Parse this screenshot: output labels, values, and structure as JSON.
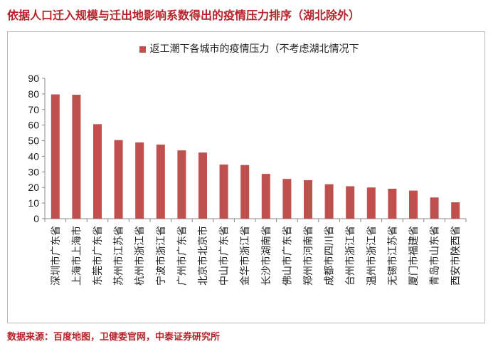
{
  "title": "依据人口迁入规模与迁出地影响系数得出的疫情压力排序（湖北除外）",
  "source": "数据来源：百度地图，卫健委官网，中泰证券研究所",
  "chart_data": {
    "type": "bar",
    "title": "",
    "xlabel": "",
    "ylabel": "",
    "ylim": [
      0,
      90
    ],
    "yticks": [
      0,
      10,
      20,
      30,
      40,
      50,
      60,
      70,
      80,
      90
    ],
    "legend": {
      "position": "top",
      "entries": [
        "返工潮下各城市的疫情压力（不考虑湖北情况下"
      ]
    },
    "grid": false,
    "bar_color": "#c0504d",
    "categories": [
      "深圳市广东省",
      "上海市上海市",
      "东莞市广东省",
      "苏州市江苏省",
      "杭州市浙江省",
      "宁波市浙江省",
      "广州市广东省",
      "北京市北京市",
      "中山市广东省",
      "金华市浙江省",
      "长沙市湖南省",
      "佛山市广东省",
      "郑州市河南省",
      "成都市四川省",
      "台州市浙江省",
      "温州市浙江省",
      "无锡市江苏省",
      "厦门市福建省",
      "青岛市山东省",
      "西安市陕西省"
    ],
    "series": [
      {
        "name": "返工潮下各城市的疫情压力（不考虑湖北情况下",
        "values": [
          79.7,
          79.5,
          60.6,
          50.4,
          48.9,
          47.5,
          43.8,
          42.4,
          34.7,
          34.4,
          28.7,
          25.5,
          24.7,
          22.1,
          20.8,
          20.0,
          19.2,
          18.0,
          13.6,
          10.5
        ]
      }
    ]
  }
}
